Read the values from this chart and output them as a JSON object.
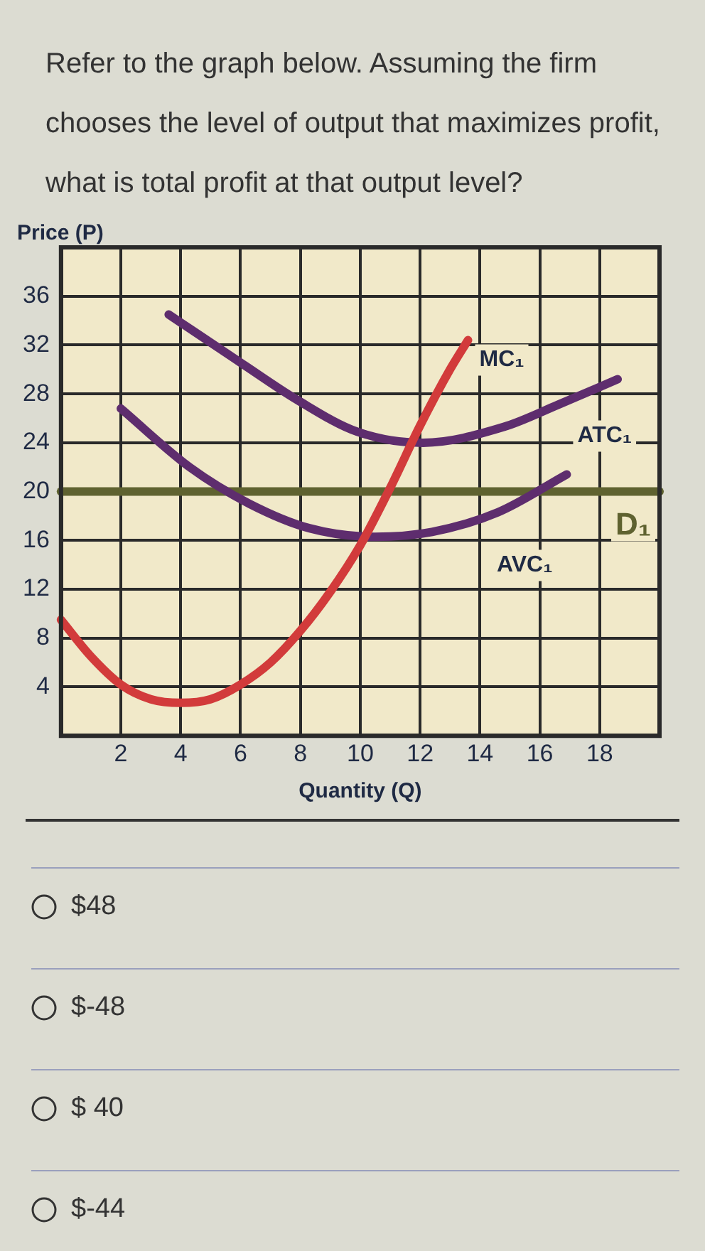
{
  "chart_data": {
    "type": "line",
    "title": "Refer to the graph below. Assuming the firm chooses the level of output that maximizes profit, what is total profit at that output level?",
    "xlabel": "Quantity (Q)",
    "ylabel": "Price (P)",
    "xlim": [
      0,
      20
    ],
    "ylim": [
      0,
      40
    ],
    "xticks": [
      2,
      4,
      6,
      8,
      10,
      12,
      14,
      16,
      18
    ],
    "yticks": [
      4,
      8,
      12,
      16,
      20,
      24,
      28,
      32,
      36
    ],
    "grid": true,
    "legend": false,
    "marker": "none",
    "line_style": "solid",
    "series": [
      {
        "name": "MC₁",
        "color": "#d23b3b",
        "x": [
          0,
          1,
          2,
          3,
          4,
          5,
          6,
          7,
          8,
          9,
          10,
          11,
          12,
          13,
          13.6
        ],
        "values": [
          9.5,
          6.5,
          4.2,
          3,
          2.7,
          3,
          4.2,
          6,
          8.6,
          11.8,
          15.6,
          20.3,
          25.4,
          30,
          32.4
        ]
      },
      {
        "name": "ATC₁",
        "color": "#5e2d6e",
        "x": [
          3.6,
          6.1,
          7.9,
          9.9,
          12.1,
          14.8,
          16.6,
          18.6
        ],
        "values": [
          34.5,
          30.4,
          27.5,
          24.9,
          24,
          25.3,
          27.1,
          29.2
        ]
      },
      {
        "name": "AVC₁",
        "color": "#5e2d6e",
        "x": [
          2,
          4.3,
          6.3,
          8.3,
          10.5,
          12.4,
          14.6,
          16.9
        ],
        "values": [
          26.8,
          22,
          19,
          17,
          16.3,
          16.7,
          18.3,
          21.4
        ]
      },
      {
        "name": "D₁",
        "color": "#5f6230",
        "x": [
          0,
          20
        ],
        "values": [
          20,
          20
        ]
      }
    ],
    "annotations": [
      "$48",
      "$-48",
      "$ 40",
      "$-44"
    ]
  }
}
